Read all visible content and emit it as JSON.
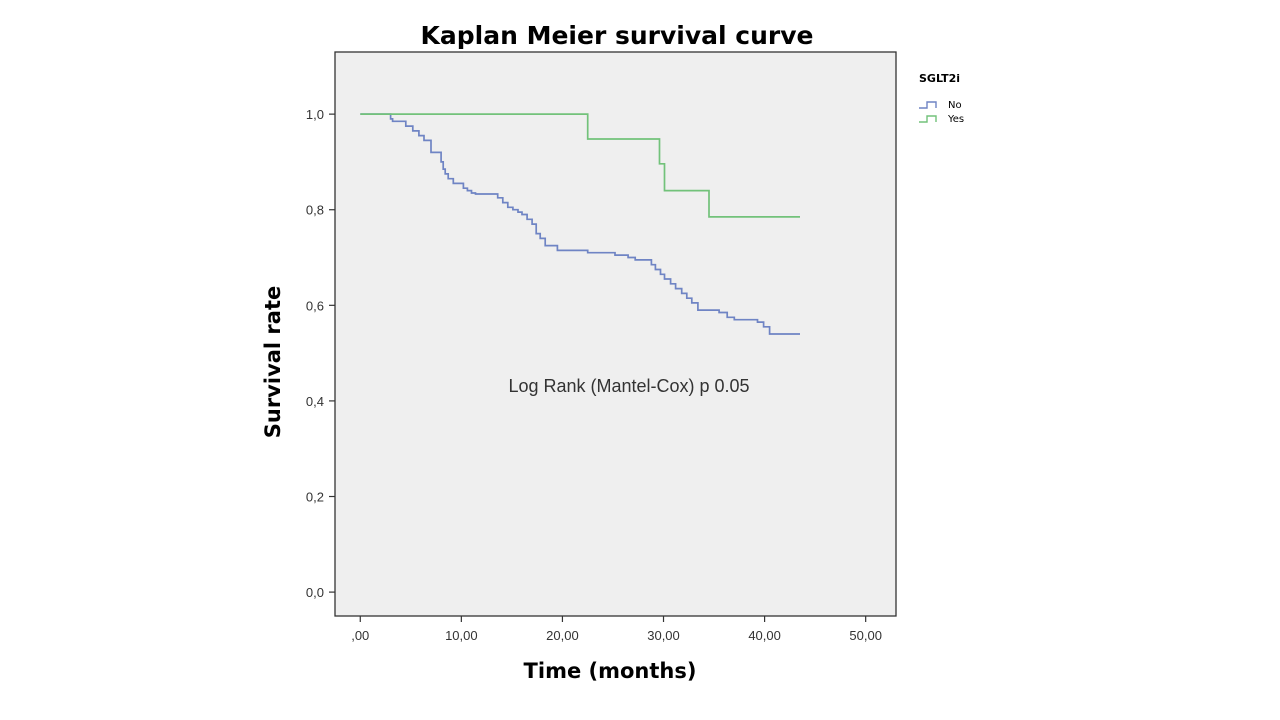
{
  "chart_data": {
    "type": "line",
    "subtype": "kaplan-meier-step",
    "title": "Kaplan Meier survival curve",
    "xlabel": "Time (months)",
    "ylabel": "Survival rate",
    "xlim": [
      -2.5,
      53
    ],
    "ylim": [
      -0.05,
      1.13
    ],
    "x_ticks": [
      0,
      10,
      20,
      30,
      40,
      50
    ],
    "x_tick_labels": [
      ",00",
      "10,00",
      "20,00",
      "30,00",
      "40,00",
      "50,00"
    ],
    "y_ticks": [
      0,
      0.2,
      0.4,
      0.6,
      0.8,
      1.0
    ],
    "y_tick_labels": [
      "0,0",
      "0,2",
      "0,4",
      "0,6",
      "0,8",
      "1,0"
    ],
    "grid": false,
    "plot_background": "#efefef",
    "legend": {
      "title": "SGLT2i",
      "position": "right-outside-top",
      "entries": [
        "No",
        "Yes"
      ]
    },
    "annotation": "Log Rank (Mantel-Cox) p 0.05",
    "series": [
      {
        "name": "No",
        "color": "#6f84c4",
        "x": [
          0,
          3.0,
          3.2,
          4.5,
          5.2,
          5.8,
          6.3,
          7.0,
          8.0,
          8.2,
          8.4,
          8.7,
          9.2,
          10.2,
          10.6,
          11.0,
          11.4,
          13.6,
          14.1,
          14.6,
          15.1,
          15.6,
          16.0,
          16.5,
          17.0,
          17.4,
          17.8,
          18.3,
          19.5,
          22.5,
          25.2,
          26.5,
          27.2,
          28.8,
          29.2,
          29.7,
          30.1,
          30.7,
          31.2,
          31.8,
          32.3,
          32.8,
          33.4,
          35.5,
          36.3,
          37.0,
          39.3,
          39.9,
          40.5,
          43.5
        ],
        "y": [
          1.0,
          0.99,
          0.985,
          0.975,
          0.965,
          0.955,
          0.945,
          0.92,
          0.9,
          0.885,
          0.875,
          0.865,
          0.855,
          0.845,
          0.84,
          0.835,
          0.833,
          0.825,
          0.815,
          0.805,
          0.8,
          0.795,
          0.79,
          0.78,
          0.77,
          0.75,
          0.74,
          0.725,
          0.715,
          0.71,
          0.705,
          0.7,
          0.695,
          0.685,
          0.675,
          0.665,
          0.655,
          0.645,
          0.635,
          0.625,
          0.615,
          0.605,
          0.59,
          0.585,
          0.575,
          0.57,
          0.565,
          0.555,
          0.54,
          0.54
        ]
      },
      {
        "name": "Yes",
        "color": "#72c27a",
        "x": [
          0,
          22.5,
          29.6,
          30.1,
          34.5,
          43.5
        ],
        "y": [
          1.0,
          0.948,
          0.896,
          0.84,
          0.785,
          0.785
        ]
      }
    ]
  }
}
